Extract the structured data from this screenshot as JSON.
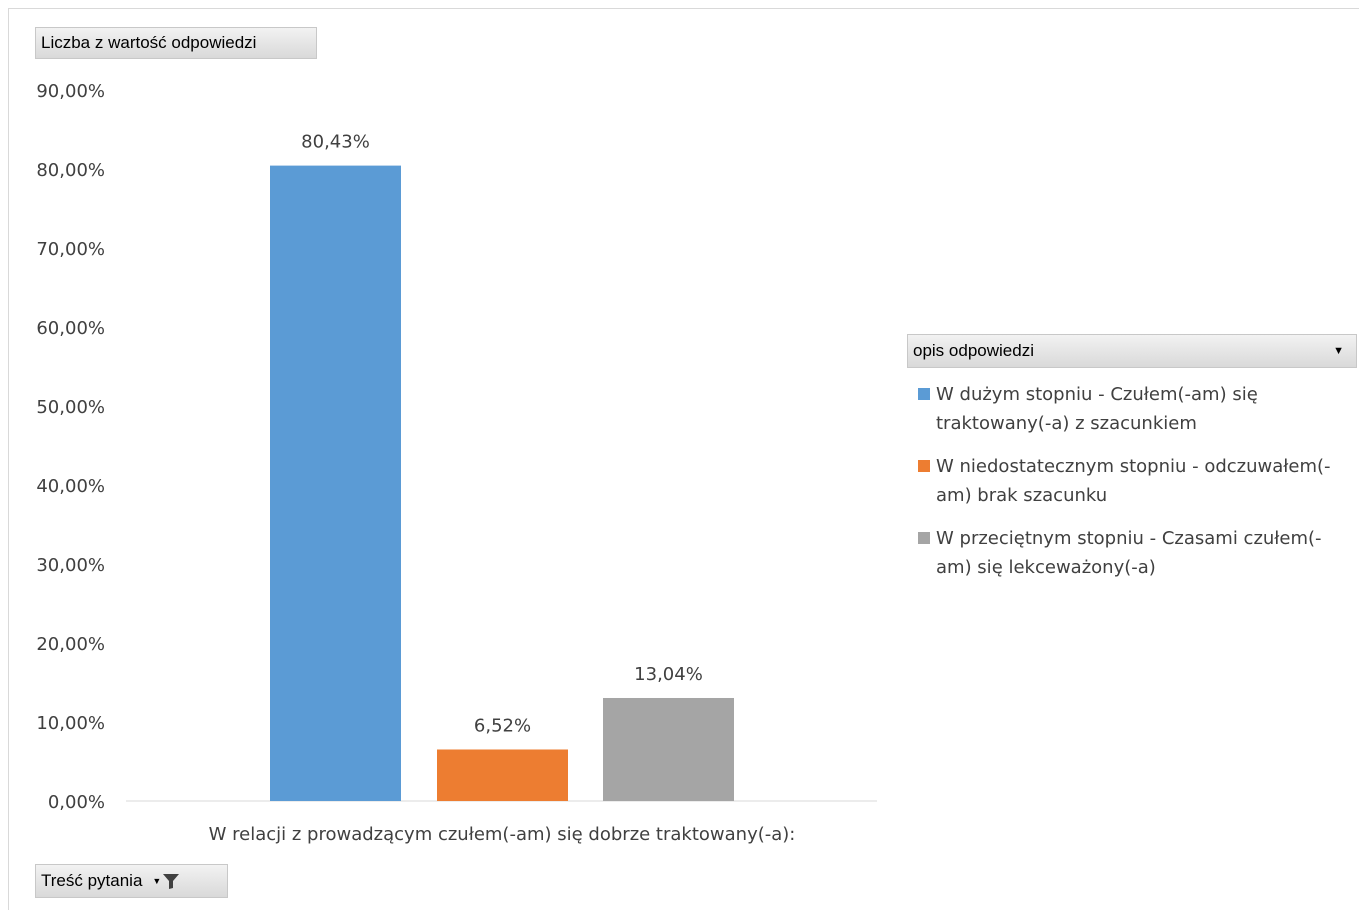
{
  "value_field_label": "Liczba z wartość odpowiedzi",
  "axis_field_label": "Treść pytania",
  "legend_field_label": "opis odpowiedzi",
  "filter_icon": "funnel-filter-icon",
  "dropdown_icon": "triangle-down-icon",
  "chart_data": {
    "type": "bar",
    "categories": [
      "W relacji z prowadzącym czułem(-am) się dobrze traktowany(-a):"
    ],
    "series": [
      {
        "name": "W dużym stopniu - Czułem(-am) się traktowany(-a) z szacunkiem",
        "values": [
          80.43
        ],
        "label": "80,43%",
        "color": "#5b9bd5"
      },
      {
        "name": "W niedostatecznym stopniu - odczuwałem(-am) brak szacunku",
        "values": [
          6.52
        ],
        "label": "6,52%",
        "color": "#ed7d31"
      },
      {
        "name": "W przeciętnym stopniu - Czasami czułem(-am) się lekceważony(-a)",
        "values": [
          13.04
        ],
        "label": "13,04%",
        "color": "#a5a5a5"
      }
    ],
    "yticks": [
      "0,00%",
      "10,00%",
      "20,00%",
      "30,00%",
      "40,00%",
      "50,00%",
      "60,00%",
      "70,00%",
      "80,00%",
      "90,00%"
    ],
    "ylim": [
      0,
      90
    ],
    "grid": false,
    "legend_position": "right"
  }
}
